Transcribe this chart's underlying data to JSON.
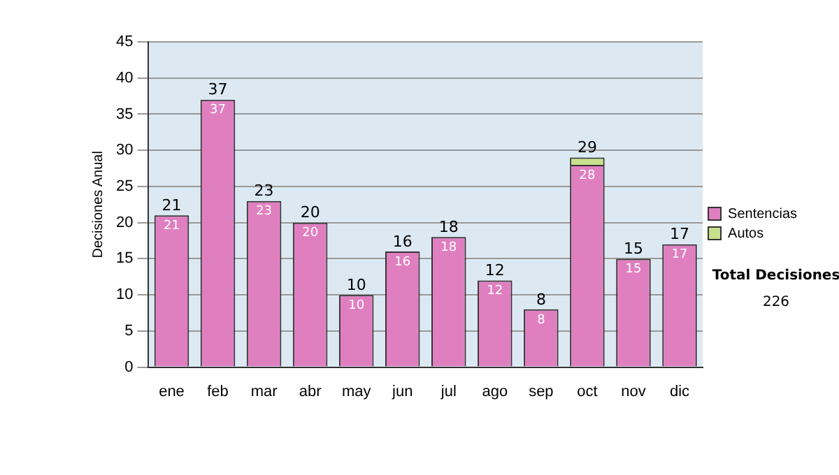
{
  "chart_data": {
    "type": "bar",
    "stacked": true,
    "ylabel": "Decisiones Anual",
    "categories": [
      "ene",
      "feb",
      "mar",
      "abr",
      "may",
      "jun",
      "jul",
      "ago",
      "sep",
      "oct",
      "nov",
      "dic"
    ],
    "series": [
      {
        "name": "Sentencias",
        "color": "#e07fc0",
        "values": [
          21,
          37,
          23,
          20,
          10,
          16,
          18,
          12,
          8,
          28,
          15,
          17
        ],
        "value_labels": [
          "21",
          "37",
          "23",
          "20",
          "10",
          "16",
          "18",
          "12",
          "8",
          "28",
          "15",
          "17"
        ]
      },
      {
        "name": "Autos",
        "color": "#c8e08c",
        "values": [
          0,
          0,
          0,
          0,
          0,
          0,
          0,
          0,
          0,
          1,
          0,
          0
        ]
      }
    ],
    "totals": [
      "21",
      "37",
      "23",
      "20",
      "10",
      "16",
      "18",
      "12",
      "8",
      "29",
      "15",
      "17"
    ],
    "ylim": [
      0,
      45
    ],
    "yticks": [
      0,
      5,
      10,
      15,
      20,
      25,
      30,
      35,
      40,
      45
    ],
    "grid": "y",
    "legend": "right",
    "annotations": [
      "Total Decisiones",
      "226"
    ]
  }
}
